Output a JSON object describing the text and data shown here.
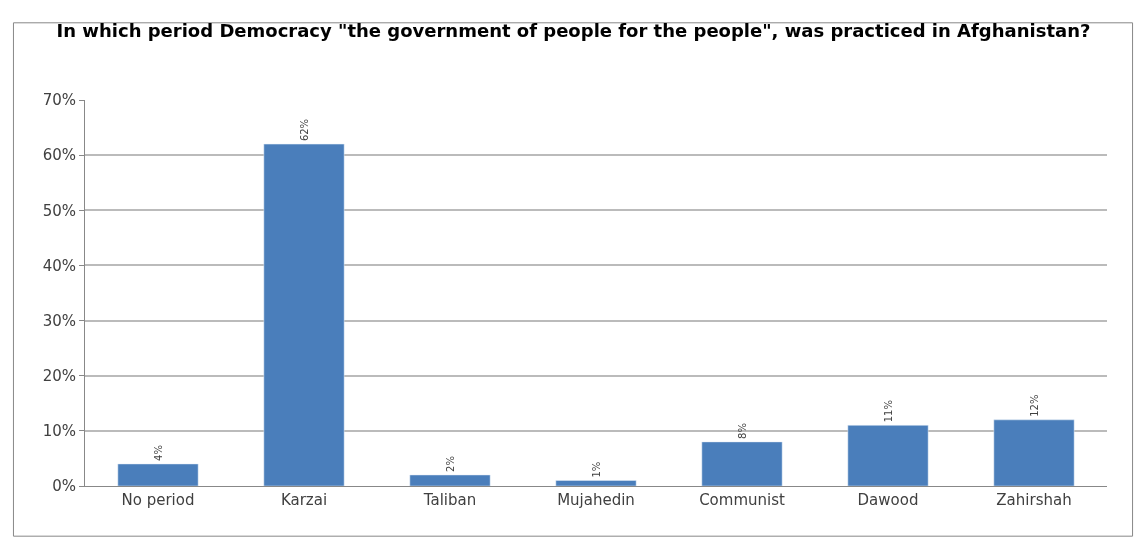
{
  "chart_data": {
    "type": "bar",
    "title": "In which period Democracy \"the government of people for the people\", was practiced in Afghanistan?",
    "categories": [
      "No period",
      "Karzai",
      "Taliban",
      "Mujahedin",
      "Communist",
      "Dawood",
      "Zahirshah"
    ],
    "values": [
      4,
      62,
      2,
      1,
      8,
      11,
      12
    ],
    "color": "#4a7ebb",
    "value_labels": [
      "4%",
      "62%",
      "2%",
      "1%",
      "8%",
      "11%",
      "12%"
    ],
    "ylim": [
      0,
      70
    ],
    "yticks": [
      {
        "value": 0,
        "label": "0%"
      },
      {
        "value": 10,
        "label": "10%"
      },
      {
        "value": 20,
        "label": "20%"
      },
      {
        "value": 30,
        "label": "30%"
      },
      {
        "value": 40,
        "label": "40%"
      },
      {
        "value": 50,
        "label": "50%"
      },
      {
        "value": 60,
        "label": "60%"
      },
      {
        "value": 70,
        "label": "70%"
      }
    ],
    "grid": "y",
    "legend": false
  }
}
